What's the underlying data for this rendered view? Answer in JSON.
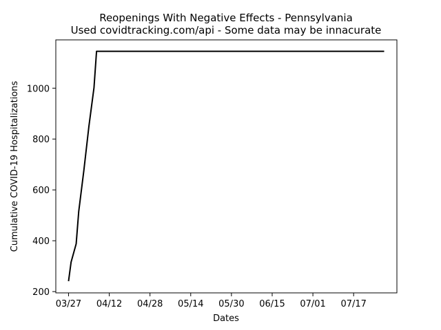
{
  "chart_data": {
    "type": "line",
    "title": "Reopenings With Negative Effects - Pennsylvania",
    "subtitle": "Used covidtracking.com/api - Some data may be innacurate",
    "xlabel": "Dates",
    "ylabel": "Cumulative COVID-19 Hospitalizations",
    "x_tick_labels": [
      "03/27",
      "04/12",
      "04/28",
      "05/14",
      "05/30",
      "06/15",
      "07/01",
      "07/17"
    ],
    "x_tick_dates": [
      "2020-03-27",
      "2020-04-12",
      "2020-04-28",
      "2020-05-14",
      "2020-05-30",
      "2020-06-15",
      "2020-07-01",
      "2020-07-17"
    ],
    "y_ticks": [
      200,
      400,
      600,
      800,
      1000
    ],
    "xlim": [
      "2020-03-22",
      "2020-08-03"
    ],
    "ylim": [
      195,
      1190
    ],
    "grid": false,
    "series": [
      {
        "color": "#000000",
        "x": [
          "2020-03-27",
          "2020-03-28",
          "2020-03-30",
          "2020-03-31",
          "2020-04-02",
          "2020-04-04",
          "2020-04-06",
          "2020-04-07",
          "2020-07-29"
        ],
        "y": [
          241,
          316,
          388,
          515,
          675,
          850,
          1002,
          1145,
          1145
        ]
      }
    ]
  }
}
